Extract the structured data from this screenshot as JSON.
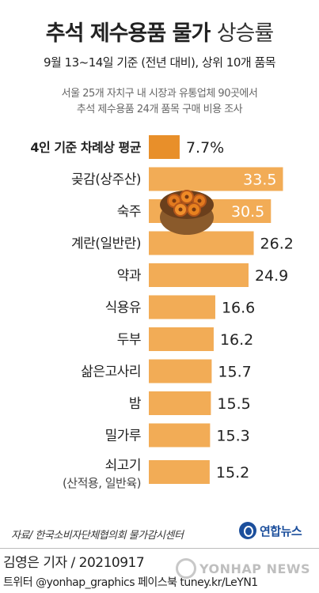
{
  "header": {
    "title_bold": "추석 제수용품 물가",
    "title_light": "상승률",
    "subtitle": "9월 13~14일 기준 (전년 대비), 상위 10개 품목",
    "note_line1": "서울 25개 자치구 내 시장과 유통업체 90곳에서",
    "note_line2": "추석 제수용품 24개 품목 구매 비용 조사"
  },
  "chart_data": {
    "type": "bar",
    "orientation": "horizontal",
    "unit": "%",
    "categories": [
      "4인 기준 차례상 평균",
      "곶감(상주산)",
      "숙주",
      "계란(일반란)",
      "약과",
      "식용유",
      "두부",
      "삶은고사리",
      "밤",
      "밀가루",
      "쇠고기"
    ],
    "category_sublabels": [
      "",
      "",
      "",
      "",
      "",
      "",
      "",
      "",
      "",
      "",
      "(산적용, 일반육)"
    ],
    "values": [
      7.7,
      33.5,
      30.5,
      26.2,
      24.9,
      16.6,
      16.2,
      15.7,
      15.5,
      15.3,
      15.2
    ],
    "value_labels": [
      "7.7%",
      "33.5",
      "30.5",
      "26.2",
      "24.9",
      "16.6",
      "16.2",
      "15.7",
      "15.5",
      "15.3",
      "15.2"
    ],
    "xlim": [
      0,
      34
    ],
    "colors": {
      "bar": "#f2ac56",
      "highlight_bar": "#e88f2a",
      "label_inside": "#ffffff",
      "label_outside": "#222222"
    }
  },
  "footer": {
    "source": "자료/ 한국소비자단체협의회 물가감시센터",
    "logo": "연합뉴스",
    "byline": "김영은 기자 / 20210917",
    "social": "트위터 @yonhap_graphics  페이스북 tuney.kr/LeYN1",
    "watermark": "YONHAP NEWS"
  }
}
